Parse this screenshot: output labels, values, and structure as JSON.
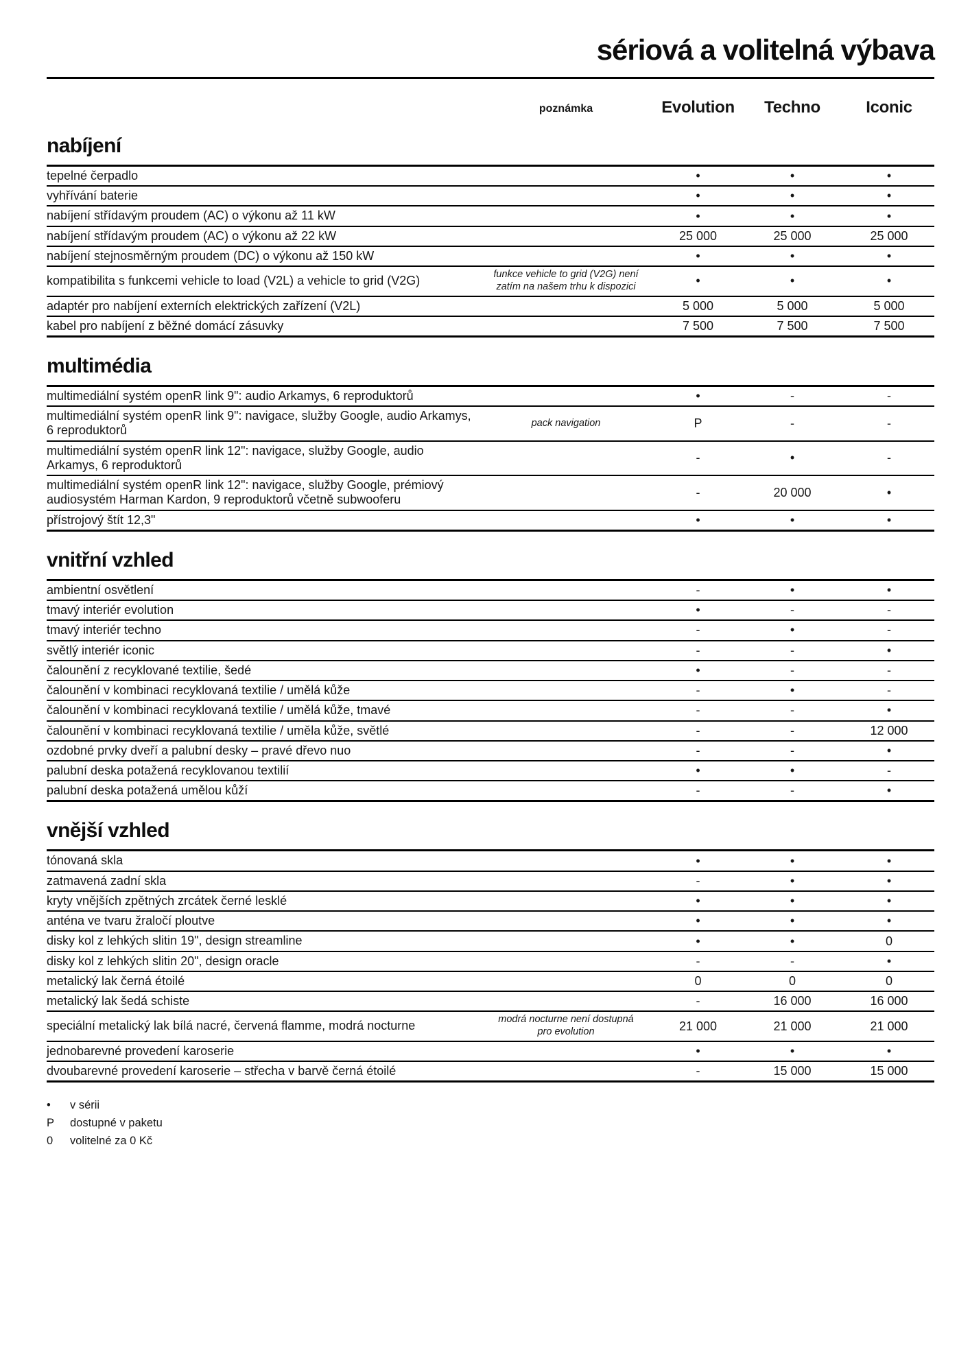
{
  "page": {
    "title": "sériová a volitelná výbava"
  },
  "columns": {
    "note": "poznámka",
    "trims": [
      "Evolution",
      "Techno",
      "Iconic"
    ]
  },
  "sections": [
    {
      "title": "nabíjení",
      "rows": [
        {
          "label": "tepelné čerpadlo",
          "note": "",
          "values": [
            "•",
            "•",
            "•"
          ]
        },
        {
          "label": "vyhřívání baterie",
          "note": "",
          "values": [
            "•",
            "•",
            "•"
          ]
        },
        {
          "label": "nabíjení střídavým proudem (AC) o výkonu až 11 kW",
          "note": "",
          "values": [
            "•",
            "•",
            "•"
          ]
        },
        {
          "label": "nabíjení střídavým proudem (AC) o výkonu až 22 kW",
          "note": "",
          "values": [
            "25 000",
            "25 000",
            "25 000"
          ]
        },
        {
          "label": "nabíjení stejnosměrným proudem (DC) o výkonu až 150 kW",
          "note": "",
          "values": [
            "•",
            "•",
            "•"
          ]
        },
        {
          "label": "kompatibilita s funkcemi vehicle to load (V2L) a vehicle to grid (V2G)",
          "note": "funkce vehicle to grid (V2G) není zatím na našem trhu k dispozici",
          "values": [
            "•",
            "•",
            "•"
          ]
        },
        {
          "label": "adaptér pro nabíjení externích elektrických zařízení (V2L)",
          "note": "",
          "values": [
            "5 000",
            "5 000",
            "5 000"
          ]
        },
        {
          "label": "kabel pro nabíjení z běžné domácí zásuvky",
          "note": "",
          "values": [
            "7 500",
            "7 500",
            "7 500"
          ]
        }
      ]
    },
    {
      "title": "multimédia",
      "rows": [
        {
          "label": "multimediální systém openR link 9\": audio Arkamys, 6 reproduktorů",
          "note": "",
          "values": [
            "•",
            "-",
            "-"
          ]
        },
        {
          "label": "multimediální systém openR link 9\": navigace, služby Google, audio Arkamys, 6 reproduktorů",
          "note": "pack navigation",
          "values": [
            "P",
            "-",
            "-"
          ]
        },
        {
          "label": "multimediální systém openR link 12\": navigace, služby Google, audio Arkamys, 6 reproduktorů",
          "note": "",
          "values": [
            "-",
            "•",
            "-"
          ]
        },
        {
          "label": "multimediální systém openR link 12\": navigace, služby Google, prémiový audiosystém Harman Kardon, 9 reproduktorů včetně subwooferu",
          "note": "",
          "values": [
            "-",
            "20 000",
            "•"
          ]
        },
        {
          "label": "přístrojový štít 12,3\"",
          "note": "",
          "values": [
            "•",
            "•",
            "•"
          ]
        }
      ]
    },
    {
      "title": "vnitřní vzhled",
      "rows": [
        {
          "label": "ambientní osvětlení",
          "note": "",
          "values": [
            "-",
            "•",
            "•"
          ]
        },
        {
          "label": "tmavý interiér evolution",
          "note": "",
          "values": [
            "•",
            "-",
            "-"
          ]
        },
        {
          "label": "tmavý interiér techno",
          "note": "",
          "values": [
            "-",
            "•",
            "-"
          ]
        },
        {
          "label": "světlý interiér iconic",
          "note": "",
          "values": [
            "-",
            "-",
            "•"
          ]
        },
        {
          "label": "čalounění z recyklované textilie, šedé",
          "note": "",
          "values": [
            "•",
            "-",
            "-"
          ]
        },
        {
          "label": "čalounění v kombinaci recyklovaná textilie / umělá kůže",
          "note": "",
          "values": [
            "-",
            "•",
            "-"
          ]
        },
        {
          "label": "čalounění v kombinaci recyklovaná textilie / umělá kůže, tmavé",
          "note": "",
          "values": [
            "-",
            "-",
            "•"
          ]
        },
        {
          "label": "čalounění v kombinaci recyklovaná textilie / uměla kůže, světlé",
          "note": "",
          "values": [
            "-",
            "-",
            "12 000"
          ]
        },
        {
          "label": "ozdobné prvky dveří a palubní desky – pravé dřevo nuo",
          "note": "",
          "values": [
            "-",
            "-",
            "•"
          ]
        },
        {
          "label": "palubní deska potažená recyklovanou textilií",
          "note": "",
          "values": [
            "•",
            "•",
            "-"
          ]
        },
        {
          "label": "palubní deska potažená umělou kůží",
          "note": "",
          "values": [
            "-",
            "-",
            "•"
          ]
        }
      ]
    },
    {
      "title": "vnější vzhled",
      "rows": [
        {
          "label": "tónovaná skla",
          "note": "",
          "values": [
            "•",
            "•",
            "•"
          ]
        },
        {
          "label": "zatmavená zadní skla",
          "note": "",
          "values": [
            "-",
            "•",
            "•"
          ]
        },
        {
          "label": "kryty vnějších zpětných zrcátek černé lesklé",
          "note": "",
          "values": [
            "•",
            "•",
            "•"
          ]
        },
        {
          "label": "anténa ve tvaru žraločí ploutve",
          "note": "",
          "values": [
            "•",
            "•",
            "•"
          ]
        },
        {
          "label": "disky kol z lehkých slitin 19\", design streamline",
          "note": "",
          "values": [
            "•",
            "•",
            "0"
          ]
        },
        {
          "label": "disky kol z lehkých slitin 20\", design oracle",
          "note": "",
          "values": [
            "-",
            "-",
            "•"
          ]
        },
        {
          "label": "metalický lak černá étoilé",
          "note": "",
          "values": [
            "0",
            "0",
            "0"
          ]
        },
        {
          "label": "metalický lak šedá schiste",
          "note": "",
          "values": [
            "-",
            "16 000",
            "16 000"
          ]
        },
        {
          "label": "speciální metalický lak bílá nacré, červená flamme, modrá nocturne",
          "note": "modrá nocturne není dostupná pro evolution",
          "values": [
            "21 000",
            "21 000",
            "21 000"
          ]
        },
        {
          "label": "jednobarevné provedení karoserie",
          "note": "",
          "values": [
            "•",
            "•",
            "•"
          ]
        },
        {
          "label": "dvoubarevné provedení karoserie – střecha v barvě černá étoilé",
          "note": "",
          "values": [
            "-",
            "15 000",
            "15 000"
          ]
        }
      ]
    }
  ],
  "legend": [
    {
      "symbol": "•",
      "text": "v sérii"
    },
    {
      "symbol": "P",
      "text": "dostupné v paketu"
    },
    {
      "symbol": "0",
      "text": "volitelné za 0 Kč"
    }
  ]
}
